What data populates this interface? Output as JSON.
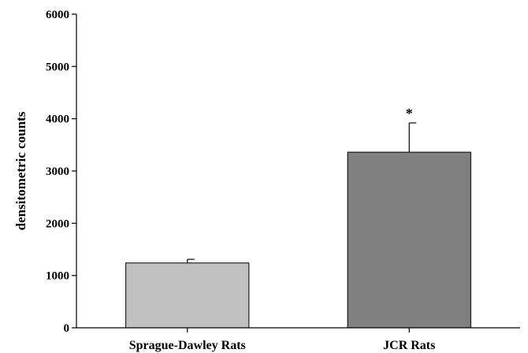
{
  "chart_data": {
    "type": "bar",
    "title": "",
    "xlabel": "",
    "ylabel": "densitometric counts",
    "ylim": [
      0,
      6000
    ],
    "yticks": [
      0,
      1000,
      2000,
      3000,
      4000,
      5000,
      6000
    ],
    "grid": false,
    "categories": [
      "Sprague-Dawley Rats",
      "JCR Rats"
    ],
    "values": [
      1240,
      3360
    ],
    "errors": [
      70,
      560
    ],
    "annotations": [
      "",
      "*"
    ],
    "colors": [
      "#c0c0c0",
      "#808080"
    ]
  }
}
